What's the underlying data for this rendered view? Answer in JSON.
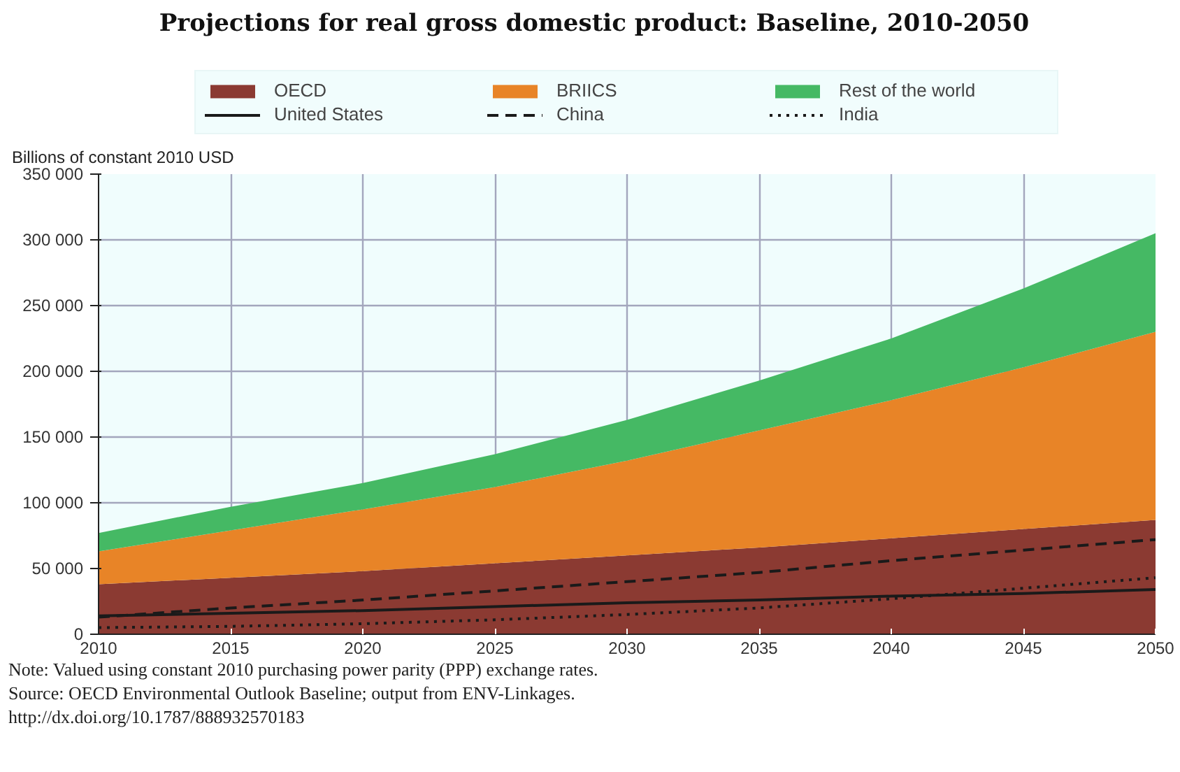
{
  "chart_data": {
    "type": "area",
    "stacked": true,
    "title": "Projections for real gross domestic product: Baseline, 2010-2050",
    "ylabel": "Billions of constant 2010 USD",
    "x": [
      2010,
      2015,
      2020,
      2025,
      2030,
      2035,
      2040,
      2045,
      2050
    ],
    "series": [
      {
        "name": "OECD",
        "color": "#8b3a32",
        "values": [
          38000,
          43000,
          48000,
          54000,
          60000,
          66000,
          73000,
          80000,
          87000
        ]
      },
      {
        "name": "BRIICS",
        "color": "#e88427",
        "values": [
          25000,
          36000,
          47000,
          58000,
          72000,
          89000,
          105000,
          123000,
          143000
        ]
      },
      {
        "name": "Rest of the world",
        "color": "#45b964",
        "values": [
          14000,
          18000,
          20000,
          25000,
          31000,
          38000,
          47000,
          60000,
          75000
        ]
      },
      {
        "name": "United States",
        "type": "line",
        "line_style": "solid",
        "color": "#1a1a1a",
        "values": [
          14000,
          16000,
          18000,
          21000,
          24000,
          26000,
          29000,
          31000,
          34000
        ]
      },
      {
        "name": "China",
        "type": "line",
        "line_style": "dashed",
        "color": "#1a1a1a",
        "values": [
          13000,
          20000,
          26000,
          33000,
          40000,
          47000,
          56000,
          64000,
          72000
        ]
      },
      {
        "name": "India",
        "type": "line",
        "line_style": "dotted",
        "color": "#1a1a1a",
        "values": [
          5000,
          6000,
          8000,
          11000,
          15000,
          20000,
          27000,
          35000,
          43000
        ]
      }
    ],
    "xlim": [
      2010,
      2050
    ],
    "xticks": [
      2010,
      2015,
      2020,
      2025,
      2030,
      2035,
      2040,
      2045,
      2050
    ],
    "ylim": [
      0,
      350000
    ],
    "yticks": [
      {
        "value": 0,
        "label": "0"
      },
      {
        "value": 50000,
        "label": "50 000"
      },
      {
        "value": 100000,
        "label": "100 000"
      },
      {
        "value": 150000,
        "label": "150 000"
      },
      {
        "value": 200000,
        "label": "200 000"
      },
      {
        "value": 250000,
        "label": "250 000"
      },
      {
        "value": 300000,
        "label": "300 000"
      },
      {
        "value": 350000,
        "label": "350 000"
      }
    ],
    "grid": true,
    "legend": "top",
    "annotations": [
      "Note: Valued using constant 2010 purchasing power parity (PPP) exchange rates.",
      "Source: OECD Environmental Outlook Baseline; output from ENV-Linkages.",
      "http://dx.doi.org/10.1787/888932570183"
    ]
  }
}
